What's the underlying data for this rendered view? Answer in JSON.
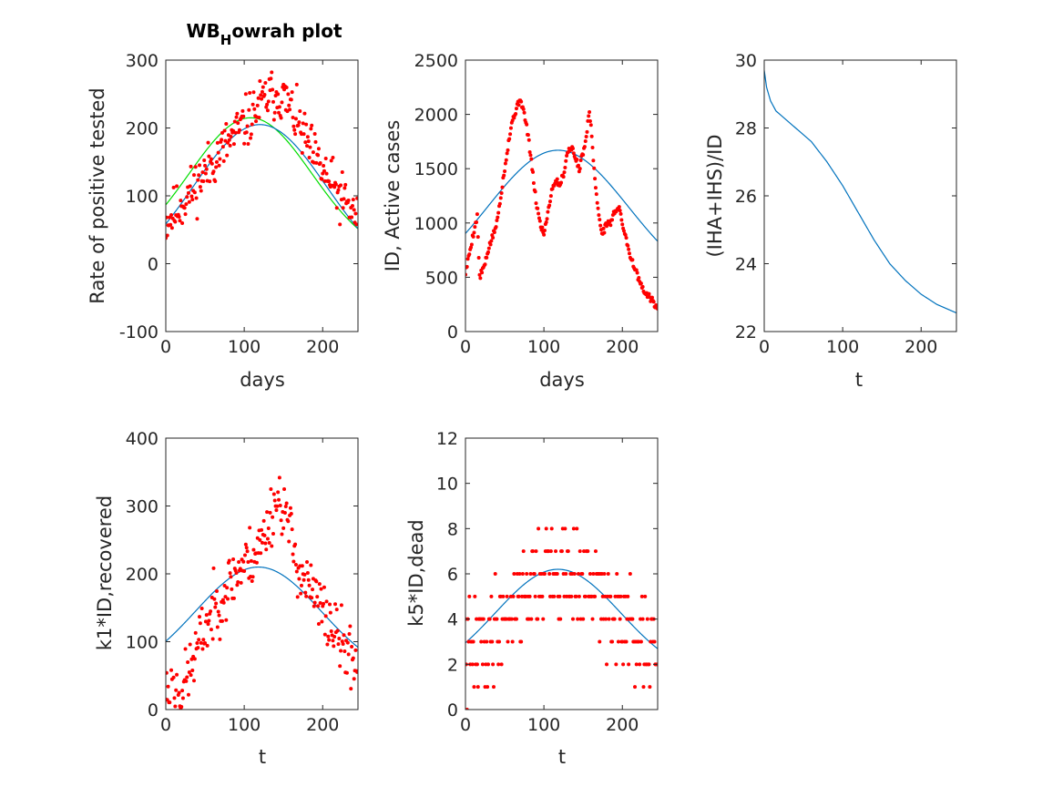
{
  "figure": {
    "background": "#ffffff"
  },
  "colors": {
    "fit": "#0072bd",
    "fit2": "#00dd00",
    "data": "#ff0000",
    "axis": "#262626"
  },
  "chart_data": [
    {
      "type": "scatter",
      "title_main": "WB",
      "title_sub": "H",
      "title_rest": "owrah plot",
      "xlabel": "days",
      "ylabel": "Rate of positive tested",
      "xlim": [
        0,
        245
      ],
      "ylim": [
        -100,
        300
      ],
      "xticks": [
        0,
        100,
        200
      ],
      "yticks": [
        -100,
        0,
        100,
        200,
        300
      ],
      "curves": [
        {
          "kind": "gauss",
          "color": "#00dd00",
          "amp": 208,
          "base": 7,
          "center": 108,
          "width": 78
        },
        {
          "kind": "gauss",
          "color": "#0072bd",
          "amp": 232,
          "base": -27,
          "center": 120,
          "width": 85
        }
      ],
      "scatter": {
        "kind": "noisy_gauss",
        "color": "#ff0000",
        "seed": 11,
        "n": 245,
        "amp": 205,
        "base": 5,
        "center": 125,
        "width": 78,
        "noise": 38,
        "bumps": [
          [
            145,
            45,
            22
          ]
        ]
      }
    },
    {
      "type": "scatter",
      "xlabel": "days",
      "ylabel": "ID, Active cases",
      "xlim": [
        0,
        245
      ],
      "ylim": [
        0,
        2500
      ],
      "xticks": [
        0,
        100,
        200
      ],
      "yticks": [
        0,
        500,
        1000,
        1500,
        2000,
        2500
      ],
      "curves": [
        {
          "kind": "gauss",
          "color": "#0072bd",
          "amp": 1330,
          "base": 340,
          "center": 118,
          "width": 90
        }
      ],
      "scatter": {
        "kind": "path",
        "color": "#ff0000",
        "seed": 5,
        "noise": 30,
        "points": [
          [
            0,
            540
          ],
          [
            10,
            900
          ],
          [
            15,
            1060
          ],
          [
            18,
            500
          ],
          [
            25,
            620
          ],
          [
            30,
            780
          ],
          [
            35,
            880
          ],
          [
            40,
            1000
          ],
          [
            45,
            1250
          ],
          [
            50,
            1500
          ],
          [
            55,
            1750
          ],
          [
            60,
            1950
          ],
          [
            65,
            2050
          ],
          [
            70,
            2150
          ],
          [
            75,
            2000
          ],
          [
            80,
            1800
          ],
          [
            85,
            1500
          ],
          [
            90,
            1200
          ],
          [
            95,
            1000
          ],
          [
            100,
            900
          ],
          [
            105,
            1100
          ],
          [
            110,
            1300
          ],
          [
            115,
            1400
          ],
          [
            120,
            1350
          ],
          [
            125,
            1450
          ],
          [
            130,
            1650
          ],
          [
            135,
            1700
          ],
          [
            140,
            1600
          ],
          [
            145,
            1500
          ],
          [
            150,
            1650
          ],
          [
            155,
            1850
          ],
          [
            158,
            2050
          ],
          [
            162,
            1700
          ],
          [
            165,
            1400
          ],
          [
            170,
            1050
          ],
          [
            175,
            900
          ],
          [
            180,
            1000
          ],
          [
            185,
            1000
          ],
          [
            190,
            1100
          ],
          [
            195,
            1150
          ],
          [
            200,
            1000
          ],
          [
            205,
            850
          ],
          [
            210,
            700
          ],
          [
            215,
            600
          ],
          [
            220,
            500
          ],
          [
            225,
            400
          ],
          [
            230,
            340
          ],
          [
            235,
            320
          ],
          [
            240,
            260
          ],
          [
            245,
            210
          ]
        ]
      }
    },
    {
      "type": "line",
      "xlabel": "t",
      "ylabel": "(IHA+IHS)/ID",
      "xlim": [
        0,
        245
      ],
      "ylim": [
        22,
        30
      ],
      "xticks": [
        0,
        100,
        200
      ],
      "yticks": [
        22,
        24,
        26,
        28,
        30
      ],
      "curves": [
        {
          "kind": "points",
          "color": "#0072bd",
          "points": [
            [
              0,
              29.7
            ],
            [
              3,
              29.2
            ],
            [
              8,
              28.8
            ],
            [
              15,
              28.5
            ],
            [
              25,
              28.3
            ],
            [
              40,
              28.0
            ],
            [
              60,
              27.6
            ],
            [
              80,
              27.0
            ],
            [
              100,
              26.3
            ],
            [
              120,
              25.5
            ],
            [
              140,
              24.7
            ],
            [
              160,
              24.0
            ],
            [
              180,
              23.5
            ],
            [
              200,
              23.1
            ],
            [
              220,
              22.8
            ],
            [
              245,
              22.55
            ]
          ]
        }
      ]
    },
    {
      "type": "scatter",
      "xlabel": "t",
      "ylabel": "k1*ID,recovered",
      "xlim": [
        0,
        245
      ],
      "ylim": [
        0,
        400
      ],
      "xticks": [
        0,
        100,
        200
      ],
      "yticks": [
        0,
        100,
        200,
        300,
        400
      ],
      "curves": [
        {
          "kind": "gauss",
          "color": "#0072bd",
          "amp": 165,
          "base": 45,
          "center": 118,
          "width": 80
        }
      ],
      "scatter": {
        "kind": "noisy_gauss",
        "color": "#ff0000",
        "seed": 23,
        "n": 245,
        "amp": 230,
        "base": 5,
        "center": 130,
        "width": 70,
        "noise": 45,
        "bumps": [
          [
            145,
            80,
            12
          ],
          [
            20,
            -40,
            15
          ]
        ]
      }
    },
    {
      "type": "scatter",
      "xlabel": "t",
      "ylabel": "k5*ID,dead",
      "xlim": [
        0,
        245
      ],
      "ylim": [
        0,
        12
      ],
      "xticks": [
        0,
        100,
        200
      ],
      "yticks": [
        0,
        2,
        4,
        6,
        8,
        10,
        12
      ],
      "curves": [
        {
          "kind": "gauss",
          "color": "#0072bd",
          "amp": 4.9,
          "base": 1.3,
          "center": 118,
          "width": 80
        }
      ],
      "scatter": {
        "kind": "noisy_gauss",
        "color": "#ff0000",
        "seed": 41,
        "n": 245,
        "amp": 5.2,
        "base": 1.0,
        "center": 120,
        "width": 70,
        "noise": 2.2,
        "integer": true,
        "bumps": []
      }
    }
  ]
}
